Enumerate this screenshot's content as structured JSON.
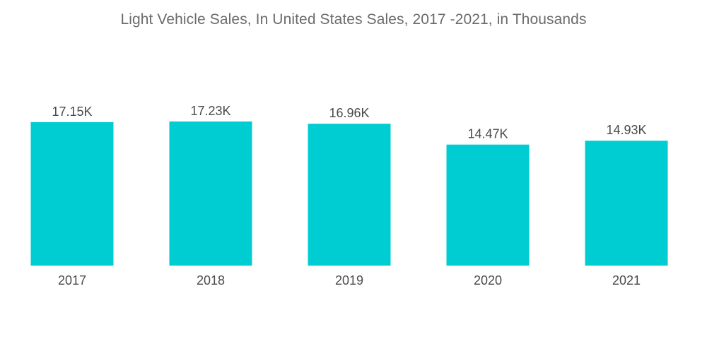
{
  "chart_data": {
    "type": "bar",
    "title": "Light Vehicle Sales, In United States Sales, 2017 -2021, in Thousands",
    "categories": [
      "2017",
      "2018",
      "2019",
      "2020",
      "2021"
    ],
    "values": [
      17.15,
      17.23,
      16.96,
      14.47,
      14.93
    ],
    "data_labels": [
      "17.15K",
      "17.23K",
      "16.96K",
      "14.47K",
      "14.93K"
    ],
    "xlabel": "",
    "ylabel": "",
    "ylim": [
      0,
      17.23
    ],
    "grid": false,
    "legend": "none",
    "bar_color": "#00cdd2"
  }
}
